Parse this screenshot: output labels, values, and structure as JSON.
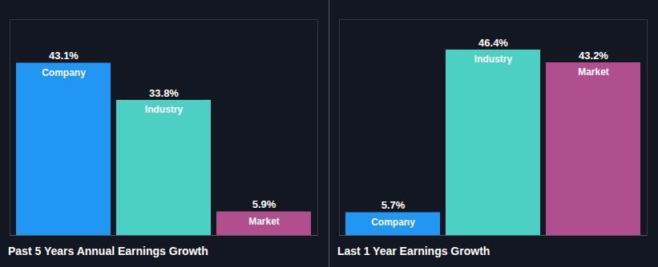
{
  "chart_data": [
    {
      "type": "bar",
      "title": "Past 5 Years Annual Earnings Growth",
      "categories": [
        "Company",
        "Industry",
        "Market"
      ],
      "values": [
        43.1,
        33.8,
        5.9
      ],
      "value_labels": [
        "43.1%",
        "33.8%",
        "5.9%"
      ],
      "colors": [
        "#2196f3",
        "#4dd0c4",
        "#b04f8e"
      ],
      "ylim": [
        0,
        54
      ],
      "data_labels": true,
      "tick_labels": false,
      "grid": false
    },
    {
      "type": "bar",
      "title": "Last 1 Year Earnings Growth",
      "categories": [
        "Company",
        "Industry",
        "Market"
      ],
      "values": [
        5.7,
        46.4,
        43.2
      ],
      "value_labels": [
        "5.7%",
        "46.4%",
        "43.2%"
      ],
      "colors": [
        "#2196f3",
        "#4dd0c4",
        "#b04f8e"
      ],
      "ylim": [
        0,
        54
      ],
      "data_labels": true,
      "tick_labels": false,
      "grid": false
    }
  ]
}
